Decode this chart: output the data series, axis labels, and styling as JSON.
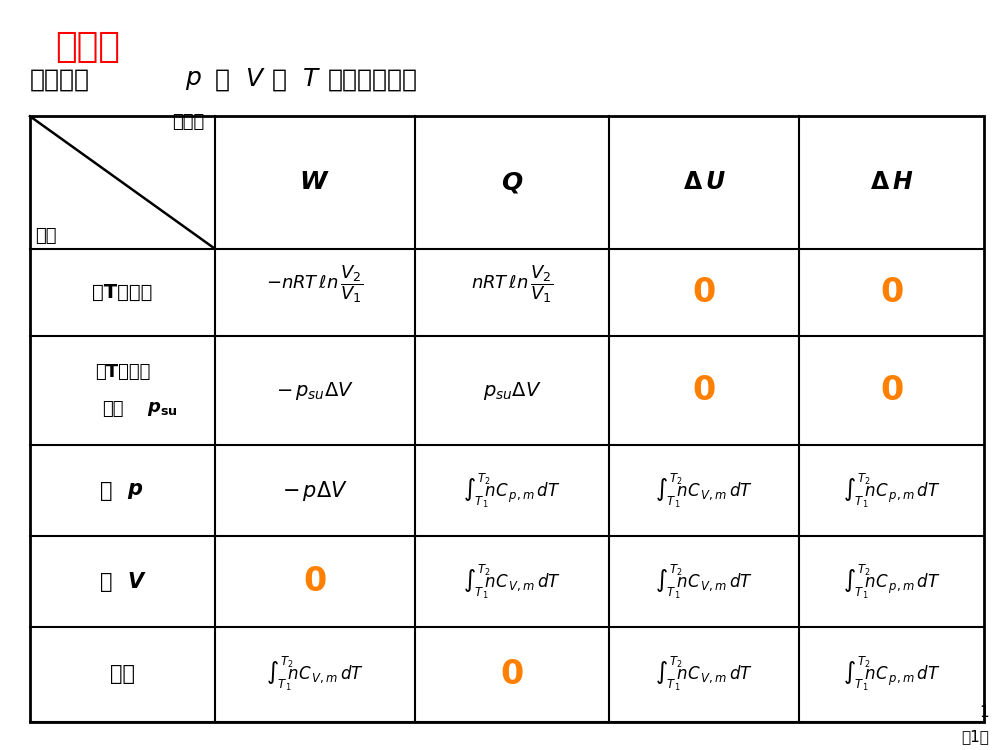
{
  "bg_color": "#FFFFFF",
  "title_review": "回顾！",
  "title_review_color": "#FF0000",
  "title_main_parts": [
    "抱负气体",
    "p",
    "、",
    "V",
    "、",
    "T",
    "改变过程计算"
  ],
  "title_main_color": "#000000",
  "page_number": "第1页",
  "slide_number": "1",
  "orange_color": "#FF8000",
  "black_color": "#000000"
}
